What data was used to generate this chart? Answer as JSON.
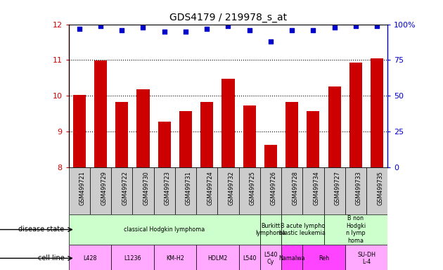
{
  "title": "GDS4179 / 219978_s_at",
  "samples": [
    "GSM499721",
    "GSM499729",
    "GSM499722",
    "GSM499730",
    "GSM499723",
    "GSM499731",
    "GSM499724",
    "GSM499732",
    "GSM499725",
    "GSM499726",
    "GSM499728",
    "GSM499734",
    "GSM499727",
    "GSM499733",
    "GSM499735"
  ],
  "transformed_count": [
    10.02,
    10.98,
    9.83,
    10.18,
    9.27,
    9.57,
    9.83,
    10.47,
    9.73,
    8.63,
    9.82,
    9.58,
    10.27,
    10.93,
    11.05
  ],
  "percentile_rank": [
    97,
    99,
    96,
    98,
    95,
    95,
    97,
    99,
    96,
    88,
    96,
    96,
    98,
    99,
    99
  ],
  "ylim": [
    8,
    12
  ],
  "yticks": [
    8,
    9,
    10,
    11,
    12
  ],
  "y2ticks_right_vals": [
    0,
    25,
    50,
    75,
    100
  ],
  "bar_color": "#cc0000",
  "dot_color": "#0000cc",
  "disease_state_groups": [
    {
      "label": "classical Hodgkin lymphoma",
      "start": 0,
      "end": 9,
      "color": "#ccffcc"
    },
    {
      "label": "Burkitt\nlymphoma",
      "start": 9,
      "end": 10,
      "color": "#ccffcc"
    },
    {
      "label": "B acute lympho\nblastic leukemia",
      "start": 10,
      "end": 12,
      "color": "#ccffcc"
    },
    {
      "label": "B non\nHodgki\nn lymp\nhoma",
      "start": 12,
      "end": 15,
      "color": "#ccffcc"
    }
  ],
  "cell_line_groups": [
    {
      "label": "L428",
      "start": 0,
      "end": 2,
      "color": "#ffaaff"
    },
    {
      "label": "L1236",
      "start": 2,
      "end": 4,
      "color": "#ffaaff"
    },
    {
      "label": "KM-H2",
      "start": 4,
      "end": 6,
      "color": "#ffaaff"
    },
    {
      "label": "HDLM2",
      "start": 6,
      "end": 8,
      "color": "#ffaaff"
    },
    {
      "label": "L540",
      "start": 8,
      "end": 9,
      "color": "#ffaaff"
    },
    {
      "label": "L540\nCy",
      "start": 9,
      "end": 10,
      "color": "#ffaaff"
    },
    {
      "label": "Namalwa",
      "start": 10,
      "end": 11,
      "color": "#ff44ff"
    },
    {
      "label": "Reh",
      "start": 11,
      "end": 13,
      "color": "#ff44ff"
    },
    {
      "label": "SU-DH\nL-4",
      "start": 13,
      "end": 15,
      "color": "#ffaaff"
    }
  ],
  "background_color": "#ffffff",
  "tick_label_color_left": "#cc0000",
  "tick_label_color_right": "#0000cc",
  "xtick_bg_color": "#cccccc"
}
